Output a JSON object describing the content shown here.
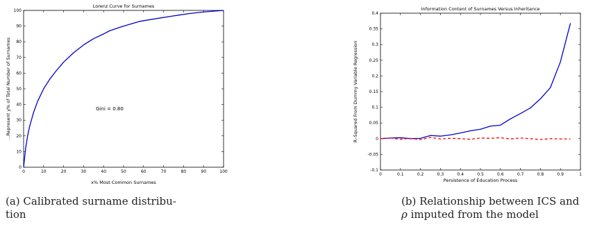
{
  "chart_data": [
    {
      "type": "line",
      "title": "Lorenz Curve for Surnames",
      "xlabel": "x% Most Common Surnames",
      "ylabel": "...Represent y% of Total Number of Surnames",
      "xlim": [
        0,
        100
      ],
      "ylim": [
        0,
        100
      ],
      "xticks": [
        0,
        10,
        20,
        30,
        40,
        50,
        60,
        70,
        80,
        90,
        100
      ],
      "yticks": [
        0,
        10,
        20,
        30,
        40,
        50,
        60,
        70,
        80,
        90,
        100
      ],
      "annotation": "Gini = 0.80",
      "series": [
        {
          "color": "#0000cc",
          "style": "solid",
          "x": [
            0,
            1,
            2,
            3,
            5,
            7,
            10,
            13,
            16,
            20,
            25,
            30,
            35,
            40,
            43,
            50,
            58,
            65,
            75,
            83,
            90,
            95,
            100
          ],
          "y": [
            0,
            12,
            20,
            26,
            35,
            42,
            50,
            56,
            61,
            67,
            73,
            78,
            82,
            85,
            87,
            90,
            93,
            94.5,
            96.5,
            98,
            99,
            99.5,
            100
          ]
        }
      ]
    },
    {
      "type": "line",
      "title": "Information Content of Surnames Versus Inheritance",
      "xlabel": "Persistence of Education Process",
      "ylabel": "R–Squared From Dummy Variable Regression",
      "xlim": [
        0,
        1
      ],
      "ylim": [
        -0.1,
        0.4
      ],
      "xticks": [
        0,
        0.1,
        0.2,
        0.3,
        0.4,
        0.5,
        0.6,
        0.7,
        0.8,
        0.9,
        1
      ],
      "yticks": [
        -0.1,
        -0.05,
        0,
        0.05,
        0.1,
        0.15,
        0.2,
        0.25,
        0.3,
        0.35,
        0.4
      ],
      "series": [
        {
          "color": "#0000cc",
          "style": "solid",
          "x": [
            0,
            0.05,
            0.1,
            0.15,
            0.2,
            0.25,
            0.3,
            0.35,
            0.4,
            0.45,
            0.5,
            0.55,
            0.6,
            0.65,
            0.7,
            0.75,
            0.8,
            0.85,
            0.9,
            0.95
          ],
          "y": [
            0,
            0.002,
            0.003,
            0.0,
            0.001,
            0.01,
            0.008,
            0.012,
            0.018,
            0.025,
            0.03,
            0.04,
            0.043,
            0.063,
            0.08,
            0.098,
            0.127,
            0.163,
            0.245,
            0.368
          ]
        },
        {
          "color": "#ff0000",
          "style": "dashed",
          "x": [
            0,
            0.05,
            0.1,
            0.15,
            0.2,
            0.25,
            0.3,
            0.35,
            0.4,
            0.45,
            0.5,
            0.55,
            0.6,
            0.65,
            0.7,
            0.75,
            0.8,
            0.85,
            0.9,
            0.95
          ],
          "y": [
            0,
            0.002,
            -0.002,
            0.001,
            -0.003,
            0.004,
            -0.001,
            0.001,
            0.0,
            -0.002,
            0.002,
            0.001,
            0.003,
            -0.001,
            0.002,
            0.0,
            -0.003,
            0.0,
            -0.001,
            -0.001
          ]
        }
      ]
    }
  ],
  "captions": {
    "a_line1": "(a) Calibrated surname distribu-",
    "a_line2": "tion",
    "b_line1": "(b) Relationship between ICS and",
    "b_line2_symbol": "ρ",
    "b_line2_rest": " imputed from the model"
  }
}
